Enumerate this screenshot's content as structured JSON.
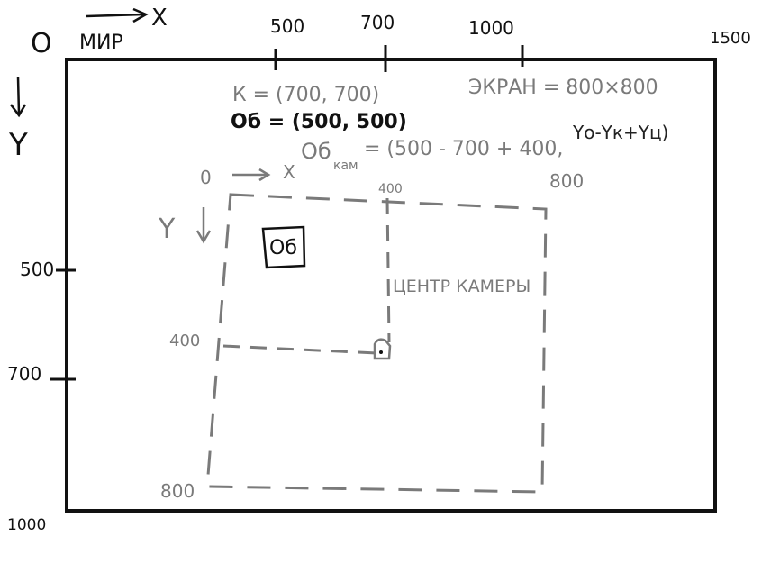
{
  "world": {
    "origin_label": "О",
    "name_label": "МИР",
    "x_axis_label": "X",
    "y_axis_label": "Y",
    "x_ticks": [
      "500",
      "700",
      "1000",
      "1500"
    ],
    "y_ticks": [
      "500",
      "700",
      "1000"
    ]
  },
  "notes": {
    "camera_pos": "К = (700, 700)",
    "object_pos": "Об = (500, 500)",
    "screen_size": "ЭКРАН = 800×800",
    "formula_lhs": "Об",
    "formula_sub": "кам",
    "formula_rhs": "= (500 - 700 + 400,",
    "formula_y": "Yо-Yк+Yц)"
  },
  "screen": {
    "origin_label": "0",
    "x_axis_label": "X",
    "y_axis_label": "Y",
    "x_ticks": [
      "400",
      "800"
    ],
    "y_ticks": [
      "400",
      "800"
    ],
    "center_label": "ЦЕНТР КАМЕРЫ"
  },
  "object": {
    "label": "Об"
  },
  "colors": {
    "ink": "#111111",
    "pencil": "#7a7a7a"
  }
}
